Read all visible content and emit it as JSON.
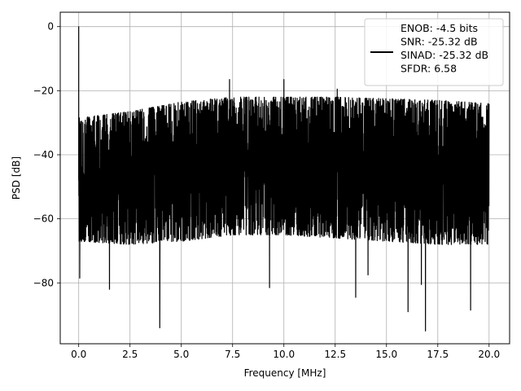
{
  "chart_data": {
    "type": "line",
    "xlabel": "Frequency [MHz]",
    "ylabel": "PSD [dB]",
    "xlim": [
      -0.9,
      21.0
    ],
    "ylim": [
      -99,
      4.5
    ],
    "x_ticks": [
      0.0,
      2.5,
      5.0,
      7.5,
      10.0,
      12.5,
      15.0,
      17.5,
      20.0
    ],
    "x_tick_labels": [
      "0.0",
      "2.5",
      "5.0",
      "7.5",
      "10.0",
      "12.5",
      "15.0",
      "17.5",
      "20.0"
    ],
    "y_ticks": [
      0,
      -20,
      -40,
      -60,
      -80
    ],
    "y_tick_labels": [
      "0",
      "−20",
      "−40",
      "−60",
      "−80"
    ],
    "grid": true,
    "legend_position": "top-right",
    "series_color": "#000000",
    "series": [
      {
        "name": "ENOB: -4.5 bits\nSNR: -25.32 dB\nSINAD: -25.32 dB\nSFDR: 6.58",
        "x_range": [
          0.0,
          20.0
        ],
        "dc_peak": {
          "x": 0.0,
          "y": 0.0
        },
        "upper_envelope": [
          [
            0.0,
            -28.5
          ],
          [
            2.5,
            -26.5
          ],
          [
            5.0,
            -23.5
          ],
          [
            7.5,
            -22.0
          ],
          [
            10.0,
            -22.0
          ],
          [
            12.5,
            -22.0
          ],
          [
            15.0,
            -22.5
          ],
          [
            17.5,
            -23.0
          ],
          [
            20.0,
            -24.0
          ]
        ],
        "lower_envelope": [
          [
            0.0,
            -67.0
          ],
          [
            2.5,
            -68.0
          ],
          [
            5.0,
            -67.0
          ],
          [
            7.5,
            -65.0
          ],
          [
            10.0,
            -65.0
          ],
          [
            12.5,
            -66.0
          ],
          [
            15.0,
            -67.0
          ],
          [
            17.5,
            -68.0
          ],
          [
            20.0,
            -68.0
          ]
        ],
        "spikes": [
          {
            "x": 7.35,
            "y": -16.5
          },
          {
            "x": 10.0,
            "y": -16.5
          },
          {
            "x": 12.6,
            "y": -19.5
          },
          {
            "x": 0.05,
            "y": -78.5
          },
          {
            "x": 1.5,
            "y": -82.0
          },
          {
            "x": 3.95,
            "y": -94.0
          },
          {
            "x": 9.3,
            "y": -81.5
          },
          {
            "x": 13.5,
            "y": -84.5
          },
          {
            "x": 16.05,
            "y": -89.0
          },
          {
            "x": 16.9,
            "y": -95.0
          },
          {
            "x": 19.1,
            "y": -88.5
          },
          {
            "x": 16.7,
            "y": -80.5
          },
          {
            "x": 14.1,
            "y": -77.5
          }
        ]
      }
    ]
  }
}
